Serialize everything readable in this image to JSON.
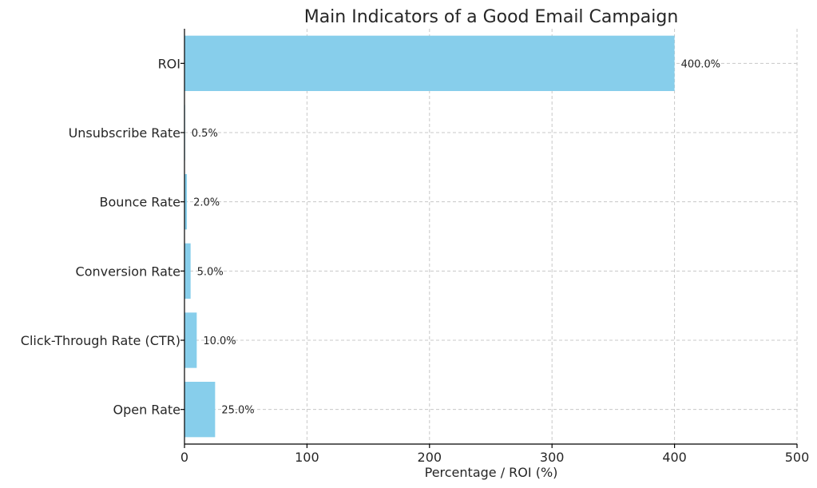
{
  "chart_data": {
    "type": "bar",
    "orientation": "horizontal",
    "title": "Main Indicators of a Good Email Campaign",
    "xlabel": "Percentage / ROI (%)",
    "ylabel": "",
    "xlim": [
      0,
      500
    ],
    "xticks": [
      "0",
      "100",
      "200",
      "300",
      "400",
      "500"
    ],
    "grid": true,
    "bar_color": "#87CEEB",
    "categories": [
      "Open Rate",
      "Click-Through Rate (CTR)",
      "Conversion Rate",
      "Bounce Rate",
      "Unsubscribe Rate",
      "ROI"
    ],
    "values": [
      25.0,
      10.0,
      5.0,
      2.0,
      0.5,
      400.0
    ],
    "value_labels": [
      "25.0%",
      "10.0%",
      "5.0%",
      "2.0%",
      "0.5%",
      "400.0%"
    ]
  }
}
